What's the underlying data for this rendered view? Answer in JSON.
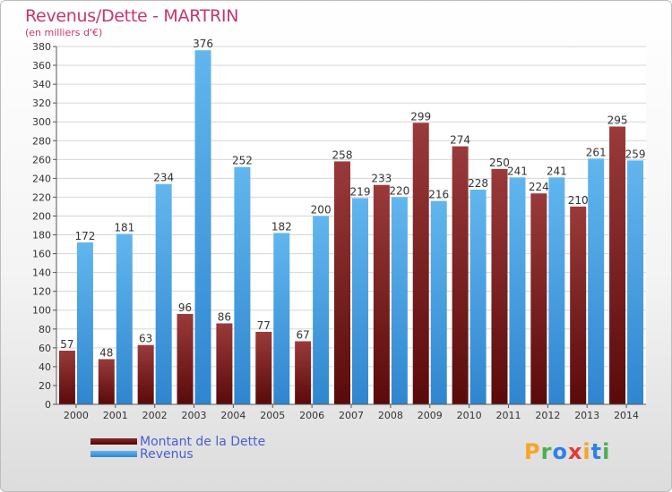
{
  "title": "Revenus/Dette - MARTRIN",
  "subtitle": "(en milliers d'€)",
  "legend": [
    {
      "label": "Montant de la Dette",
      "color": "#6b1414"
    },
    {
      "label": "Revenus",
      "color": "#4ea6e6"
    }
  ],
  "logo": {
    "letters": [
      "P",
      "r",
      "o",
      "x",
      "i",
      "t",
      "i"
    ],
    "colors": [
      "#f5a623",
      "#4caf50",
      "#2f80ed",
      "#e53935",
      "#f5a623",
      "#2f80ed",
      "#4caf50"
    ]
  },
  "colors": {
    "dette_top": "#9a3a3a",
    "dette_bottom": "#5a0a0a",
    "revenus_top": "#62b6ee",
    "revenus_bottom": "#2f86cf"
  },
  "chart_data": {
    "type": "bar",
    "categories": [
      "2000",
      "2001",
      "2002",
      "2003",
      "2004",
      "2005",
      "2006",
      "2007",
      "2008",
      "2009",
      "2010",
      "2011",
      "2012",
      "2013",
      "2014"
    ],
    "series": [
      {
        "name": "Montant de la Dette",
        "values": [
          57,
          48,
          63,
          96,
          86,
          77,
          67,
          258,
          233,
          299,
          274,
          250,
          224,
          210,
          295
        ]
      },
      {
        "name": "Revenus",
        "values": [
          172,
          181,
          234,
          376,
          252,
          182,
          200,
          219,
          220,
          216,
          228,
          241,
          241,
          261,
          259
        ]
      }
    ],
    "ylim": [
      0,
      380
    ],
    "yticks": [
      0,
      20,
      40,
      60,
      80,
      100,
      120,
      140,
      160,
      180,
      200,
      220,
      240,
      260,
      280,
      300,
      320,
      340,
      360,
      380
    ],
    "grid": true,
    "legend_position": "bottom-left"
  }
}
